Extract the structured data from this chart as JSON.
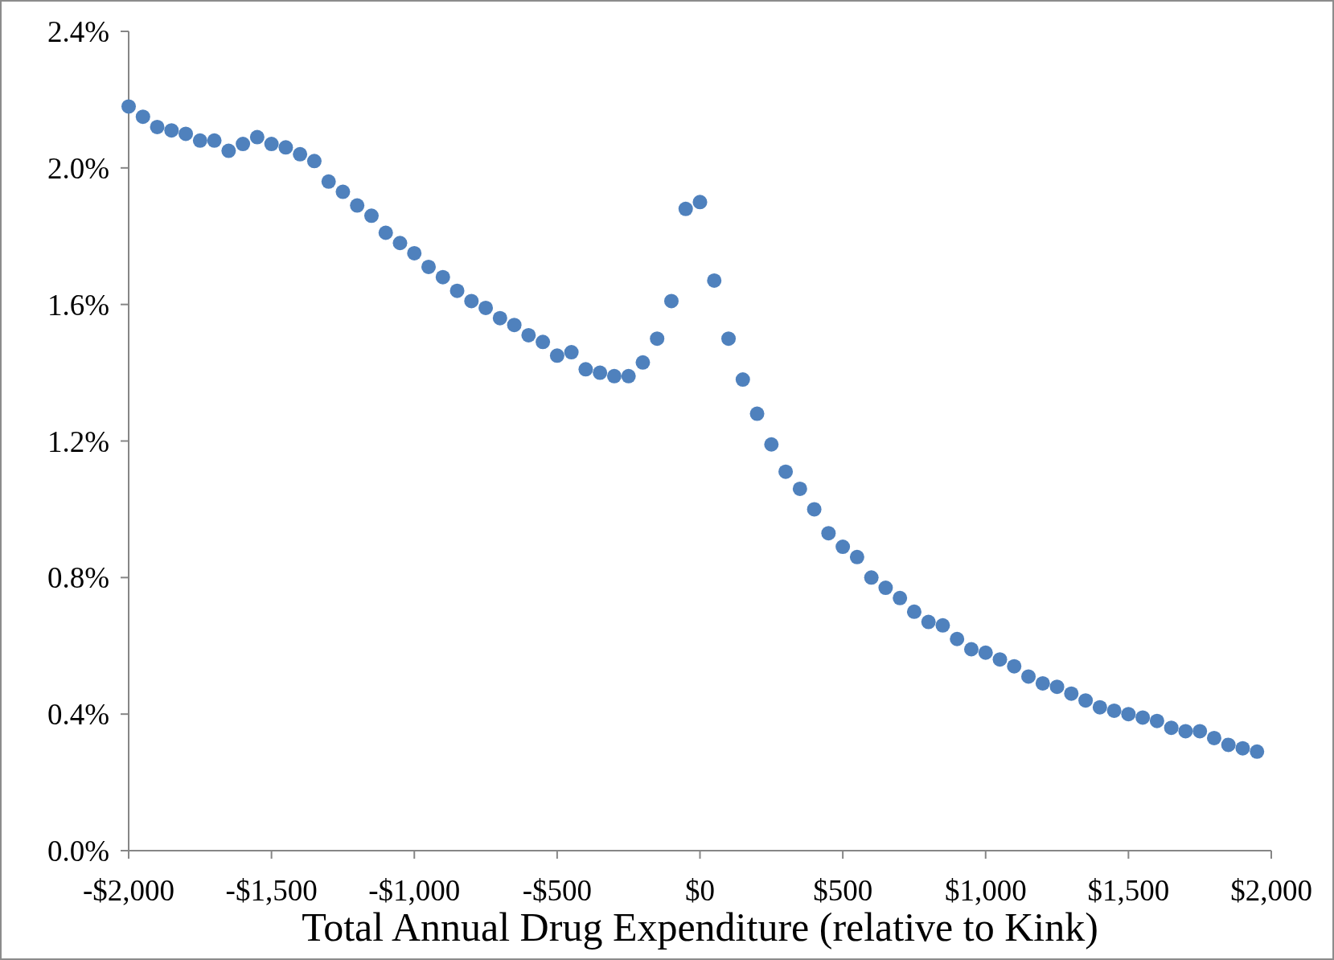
{
  "chart_data": {
    "type": "scatter",
    "xlabel": "Total Annual Drug Expenditure (relative to Kink)",
    "marker": "circle",
    "grid": false,
    "x": [
      -2000,
      -1950,
      -1900,
      -1850,
      -1800,
      -1750,
      -1700,
      -1650,
      -1600,
      -1550,
      -1500,
      -1450,
      -1400,
      -1350,
      -1300,
      -1250,
      -1200,
      -1150,
      -1100,
      -1050,
      -1000,
      -950,
      -900,
      -850,
      -800,
      -750,
      -700,
      -650,
      -600,
      -550,
      -500,
      -450,
      -400,
      -350,
      -300,
      -250,
      -200,
      -150,
      -100,
      -50,
      0,
      50,
      100,
      150,
      200,
      250,
      300,
      350,
      400,
      450,
      500,
      550,
      600,
      650,
      700,
      750,
      800,
      850,
      900,
      950,
      1000,
      1050,
      1100,
      1150,
      1200,
      1250,
      1300,
      1350,
      1400,
      1450,
      1500,
      1550,
      1600,
      1650,
      1700,
      1750,
      1800,
      1850,
      1900,
      1950
    ],
    "series": [
      {
        "color": "#4f81bd",
        "values": [
          2.18,
          2.15,
          2.12,
          2.11,
          2.1,
          2.08,
          2.08,
          2.05,
          2.07,
          2.09,
          2.07,
          2.06,
          2.04,
          2.02,
          1.96,
          1.93,
          1.89,
          1.86,
          1.81,
          1.78,
          1.75,
          1.71,
          1.68,
          1.64,
          1.61,
          1.59,
          1.56,
          1.54,
          1.51,
          1.49,
          1.45,
          1.46,
          1.41,
          1.4,
          1.39,
          1.39,
          1.43,
          1.5,
          1.61,
          1.88,
          1.9,
          1.67,
          1.5,
          1.38,
          1.28,
          1.19,
          1.11,
          1.06,
          1.0,
          0.93,
          0.89,
          0.86,
          0.8,
          0.77,
          0.74,
          0.7,
          0.67,
          0.66,
          0.62,
          0.59,
          0.58,
          0.56,
          0.54,
          0.51,
          0.49,
          0.48,
          0.46,
          0.44,
          0.42,
          0.41,
          0.4,
          0.39,
          0.38,
          0.36,
          0.35,
          0.35,
          0.33,
          0.31,
          0.3,
          0.29
        ]
      }
    ],
    "xlim": [
      -2000,
      2000
    ],
    "xticks": [
      {
        "value": -2000,
        "label": "-$2,000"
      },
      {
        "value": -1500,
        "label": "-$1,500"
      },
      {
        "value": -1000,
        "label": "-$1,000"
      },
      {
        "value": -500,
        "label": "-$500"
      },
      {
        "value": 0,
        "label": "$0"
      },
      {
        "value": 500,
        "label": "$500"
      },
      {
        "value": 1000,
        "label": "$1,000"
      },
      {
        "value": 1500,
        "label": "$1,500"
      },
      {
        "value": 2000,
        "label": "$2,000"
      }
    ],
    "ylim": [
      0,
      2.4
    ],
    "yticks": [
      {
        "value": 0,
        "label": "0.0%"
      },
      {
        "value": 0.4,
        "label": "0.4%"
      },
      {
        "value": 0.8,
        "label": "0.8%"
      },
      {
        "value": 1.2,
        "label": "1.2%"
      },
      {
        "value": 1.6,
        "label": "1.6%"
      },
      {
        "value": 2.0,
        "label": "2.0%"
      },
      {
        "value": 2.4,
        "label": "2.4%"
      }
    ]
  }
}
